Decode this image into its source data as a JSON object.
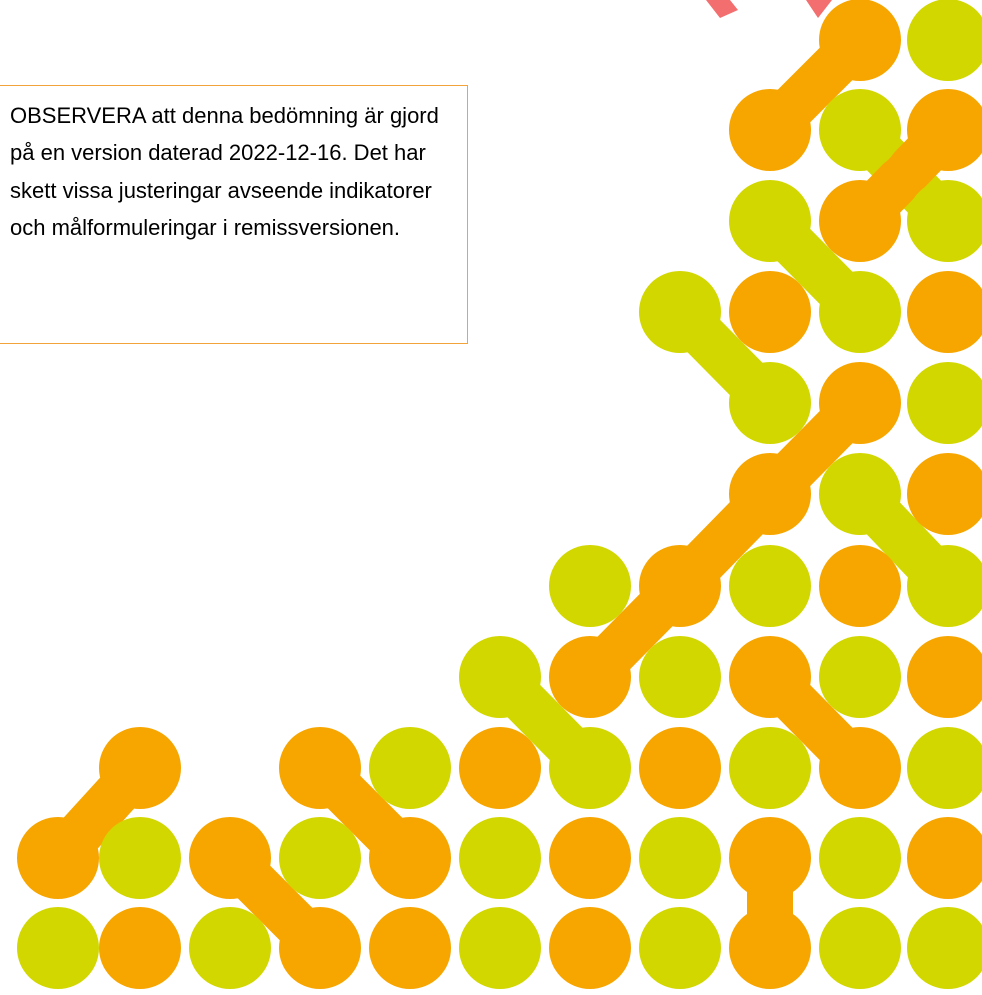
{
  "notice": {
    "text": "OBSERVERA att denna bedömning är gjord på en version daterad 2022-12-16. Det har skett vissa justeringar avseende indikatorer och målformuleringar i remissversionen."
  },
  "colors": {
    "orange": "#f7a600",
    "lime": "#d2d700",
    "notice_border": "#f2a33a",
    "top_mark": "#f36f6f"
  }
}
